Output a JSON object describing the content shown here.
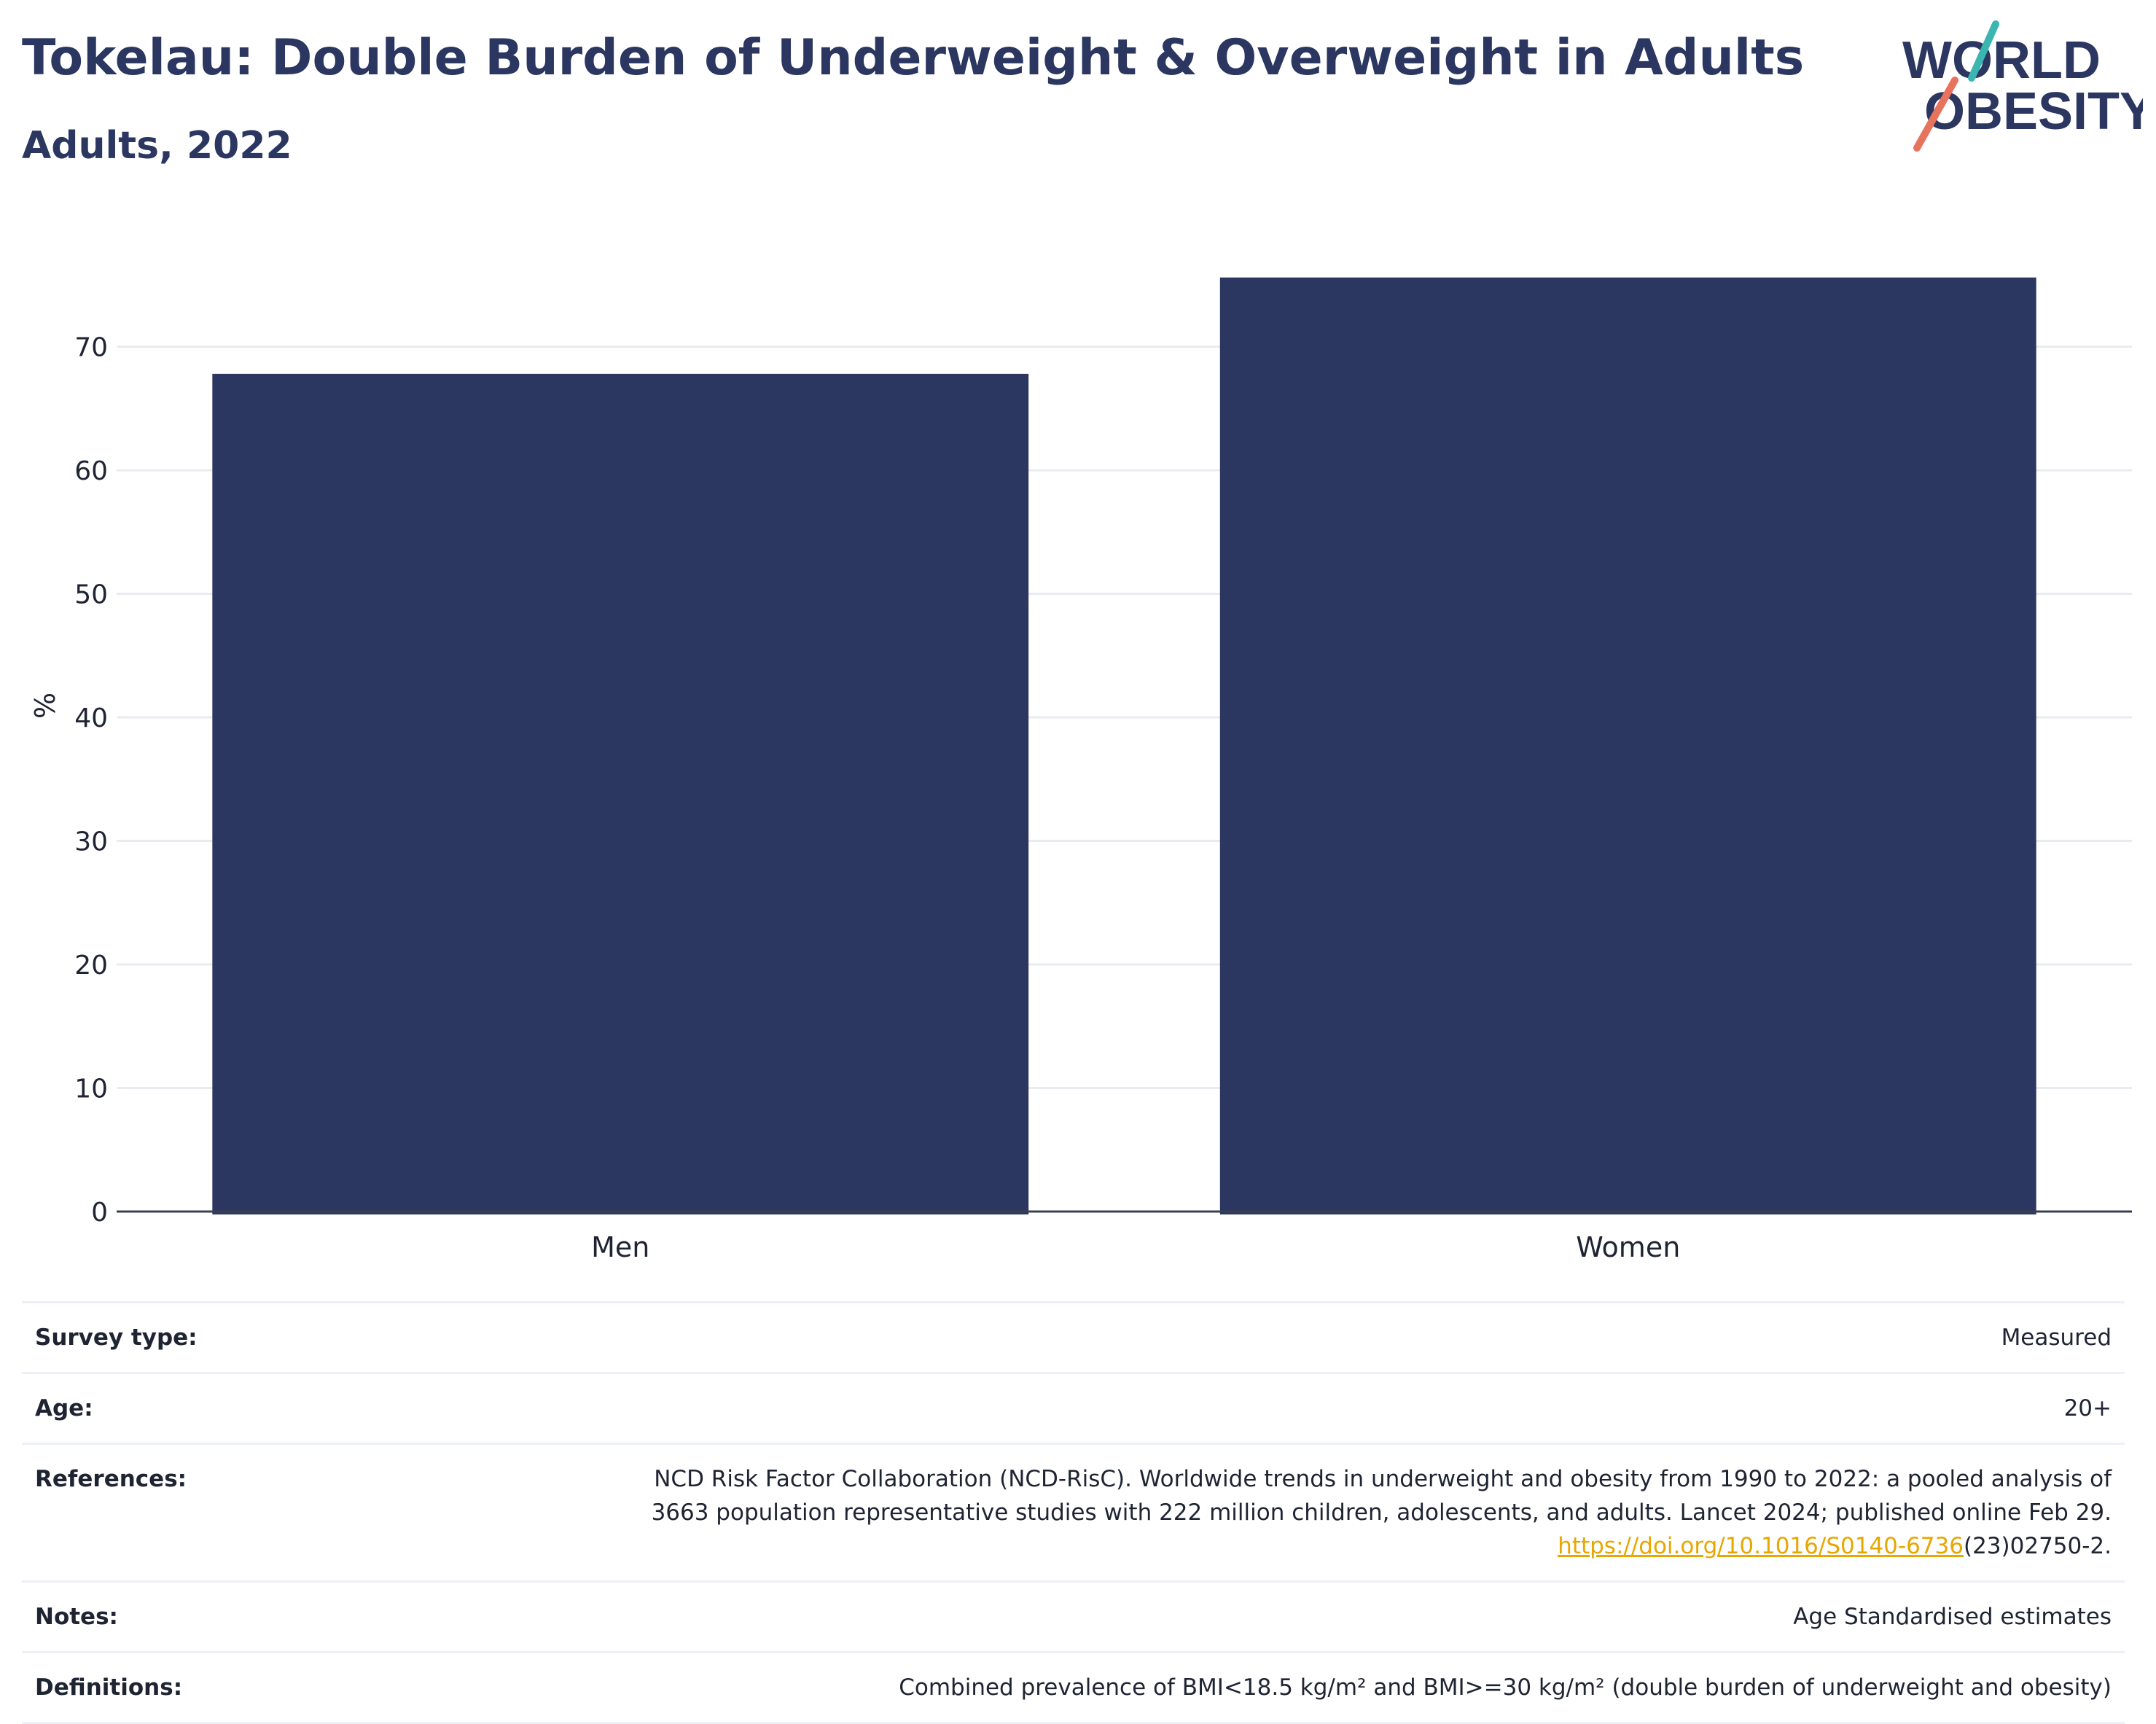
{
  "header": {
    "title": "Tokelau: Double Burden of Underweight & Overweight in Adults",
    "subtitle": "Adults, 2022"
  },
  "logo": {
    "line1": "WORLD",
    "line2": "OBESITY",
    "colors": {
      "navy": "#2b3661",
      "teal": "#3ab5b0",
      "coral": "#e8735c"
    }
  },
  "chart_data": {
    "type": "bar",
    "categories": [
      "Men",
      "Women"
    ],
    "values": [
      67.8,
      75.6
    ],
    "ylabel": "%",
    "ylim": [
      0,
      78
    ],
    "yticks": [
      0,
      10,
      20,
      30,
      40,
      50,
      60,
      70
    ],
    "grid": true,
    "bar_color": "#2b3661"
  },
  "meta": {
    "survey_type": {
      "label": "Survey type:",
      "value": "Measured"
    },
    "age": {
      "label": "Age:",
      "value": "20+"
    },
    "references": {
      "label": "References:",
      "line1": "NCD Risk Factor Collaboration (NCD-RisC). Worldwide trends in underweight and obesity from 1990 to 2022: a pooled analysis of",
      "line2": "3663 population representative studies with 222 million children, adolescents, and adults. Lancet 2024; published online Feb 29.",
      "link": "https://doi.org/10.1016/S0140-6736",
      "link_suffix": "(23)02750-2."
    },
    "notes": {
      "label": "Notes:",
      "value": "Age Standardised estimates"
    },
    "definitions": {
      "label": "Definitions:",
      "value": "Combined prevalence of BMI<18.5 kg/m² and BMI>=30 kg/m² (double burden of underweight and obesity)"
    }
  }
}
